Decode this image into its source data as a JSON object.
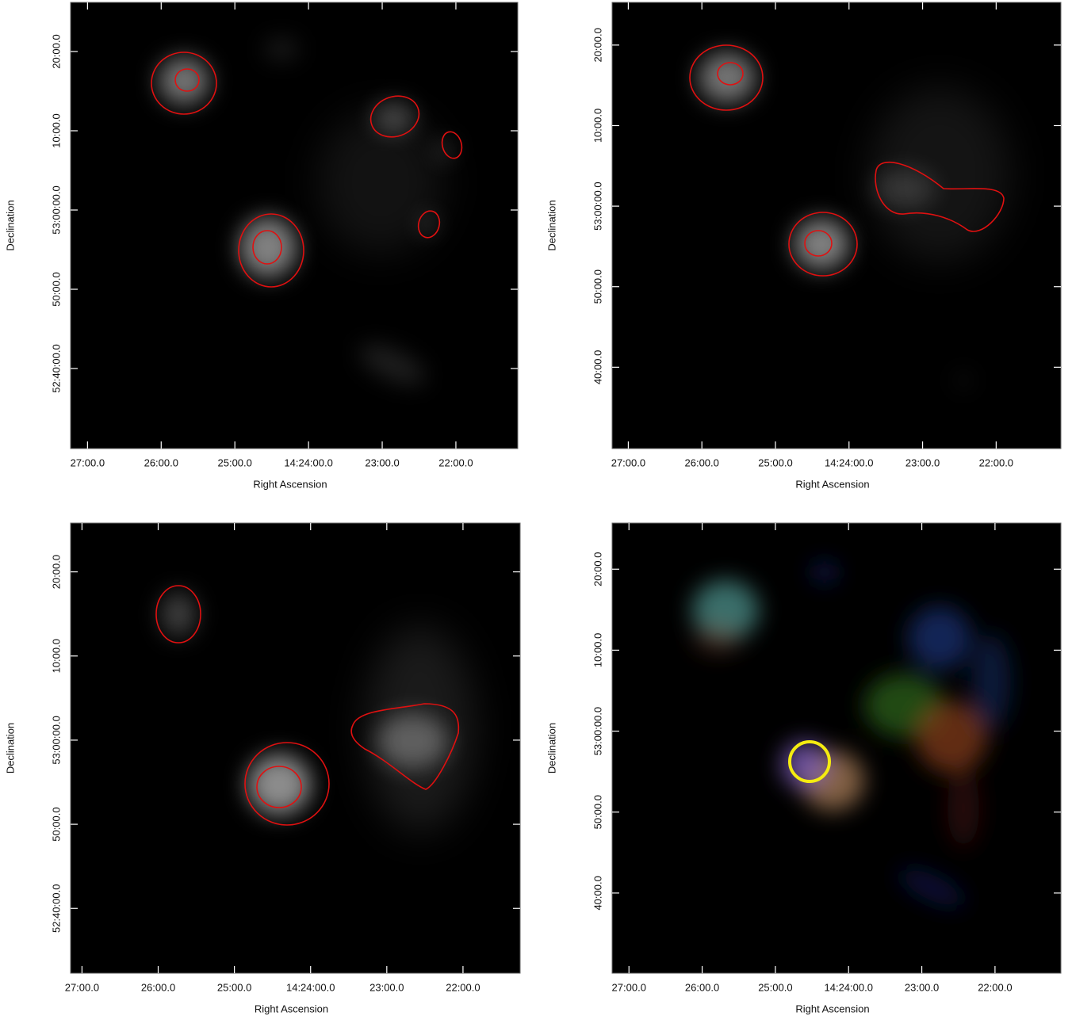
{
  "chart_data": [
    {
      "type": "image",
      "xlabel": "Right Ascension",
      "ylabel": "Declination",
      "xlim": [
        27.23,
        21.16
      ],
      "ylim": [
        3149.9,
        3206.2
      ],
      "xticks": [
        {
          "value": 27,
          "label": "27:00.0"
        },
        {
          "value": 26,
          "label": "26:00.0"
        },
        {
          "value": 25,
          "label": "25:00.0"
        },
        {
          "value": 24,
          "label": "14:24:00.0"
        },
        {
          "value": 23,
          "label": "23:00.0"
        },
        {
          "value": 22,
          "label": "22:00.0"
        }
      ],
      "yticks": [
        {
          "value": 3200,
          "label": "20:00.0"
        },
        {
          "value": 3190,
          "label": "10:00.0"
        },
        {
          "value": 3180,
          "label": "53:00:00.0"
        },
        {
          "value": 3170,
          "label": "50:00.0"
        },
        {
          "value": 3160,
          "label": "52:40:00.0"
        }
      ]
    },
    {
      "type": "image",
      "xlabel": "Right Ascension",
      "ylabel": "Declination",
      "xlim": [
        27.22,
        21.12
      ],
      "ylim": [
        3149.9,
        3205.3
      ],
      "xticks": [
        {
          "value": 27,
          "label": "27:00.0"
        },
        {
          "value": 26,
          "label": "26:00.0"
        },
        {
          "value": 25,
          "label": "25:00.0"
        },
        {
          "value": 24,
          "label": "14:24:00.0"
        },
        {
          "value": 23,
          "label": "23:00.0"
        },
        {
          "value": 22,
          "label": "22:00.0"
        }
      ],
      "yticks": [
        {
          "value": 3200,
          "label": "20:00.0"
        },
        {
          "value": 3190,
          "label": "10:00.0"
        },
        {
          "value": 3180,
          "label": "53:00:00.0"
        },
        {
          "value": 3170,
          "label": "50:00.0"
        },
        {
          "value": 3160,
          "label": "40:00.0"
        }
      ]
    },
    {
      "type": "image",
      "xlabel": "Right Ascension",
      "ylabel": "Declination",
      "xlim": [
        27.15,
        21.25
      ],
      "ylim": [
        3152.3,
        3205.8
      ],
      "xticks": [
        {
          "value": 27,
          "label": "27:00.0"
        },
        {
          "value": 26,
          "label": "26:00.0"
        },
        {
          "value": 25,
          "label": "25:00.0"
        },
        {
          "value": 24,
          "label": "14:24:00.0"
        },
        {
          "value": 23,
          "label": "23:00.0"
        },
        {
          "value": 22,
          "label": "22:00.0"
        }
      ],
      "yticks": [
        {
          "value": 3200,
          "label": "20:00.0"
        },
        {
          "value": 3190,
          "label": "10:00.0"
        },
        {
          "value": 3180,
          "label": "53:00:00.0"
        },
        {
          "value": 3170,
          "label": "50:00.0"
        },
        {
          "value": 3160,
          "label": "52:40:00.0"
        }
      ]
    },
    {
      "type": "image",
      "xlabel": "Right Ascension",
      "ylabel": "Declination",
      "xlim": [
        27.23,
        21.1
      ],
      "ylim": [
        3150.1,
        3205.7
      ],
      "xticks": [
        {
          "value": 27,
          "label": "27:00.0"
        },
        {
          "value": 26,
          "label": "26:00.0"
        },
        {
          "value": 25,
          "label": "25:00.0"
        },
        {
          "value": 24,
          "label": "14:24:00.0"
        },
        {
          "value": 23,
          "label": "23:00.0"
        },
        {
          "value": 22,
          "label": "22:00.0"
        }
      ],
      "yticks": [
        {
          "value": 3200,
          "label": "20:00.0"
        },
        {
          "value": 3190,
          "label": "10:00.0"
        },
        {
          "value": 3180,
          "label": "53:00:00.0"
        },
        {
          "value": 3170,
          "label": "50:00.0"
        },
        {
          "value": 3160,
          "label": "40:00.0"
        }
      ]
    }
  ]
}
